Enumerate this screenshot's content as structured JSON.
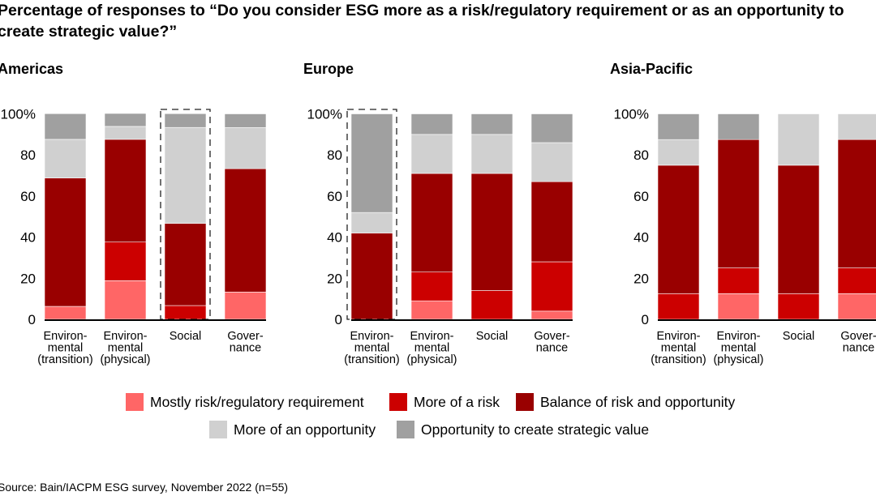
{
  "title": "Percentage of responses to “Do you consider ESG more as a risk/regulatory requirement or as an opportunity to create strategic value?”",
  "source": "Source: Bain/IACPM ESG survey, November 2022 (n=55)",
  "chart_data": [
    {
      "type": "bar",
      "stacked": true,
      "title": "Americas",
      "categories": [
        "Environ-|mental|(transition)",
        "Environ-|mental|(physical)",
        "Social",
        "Gover-|nance"
      ],
      "highlighted": [
        2
      ],
      "ylim": [
        0,
        100
      ],
      "yticks": [
        "0",
        "20",
        "40",
        "60",
        "80",
        "100%"
      ],
      "series": [
        {
          "name": "Mostly risk/regulatory requirement",
          "values": [
            6.3,
            18.8,
            0,
            13.3
          ]
        },
        {
          "name": "More of a risk",
          "values": [
            0,
            18.8,
            6.7,
            0
          ]
        },
        {
          "name": "Balance of risk and opportunity",
          "values": [
            62.5,
            50,
            40,
            60
          ]
        },
        {
          "name": "More of an opportunity",
          "values": [
            18.8,
            6.3,
            46.7,
            20
          ]
        },
        {
          "name": "Opportunity to create strategic value",
          "values": [
            12.5,
            6.3,
            6.7,
            6.7
          ]
        }
      ]
    },
    {
      "type": "bar",
      "stacked": true,
      "title": "Europe",
      "categories": [
        "Environ-|mental|(transition)",
        "Environ-|mental|(physical)",
        "Social",
        "Gover-|nance"
      ],
      "highlighted": [
        0
      ],
      "ylim": [
        0,
        100
      ],
      "yticks": [
        "0",
        "20",
        "40",
        "60",
        "80",
        "100%"
      ],
      "series": [
        {
          "name": "Mostly risk/regulatory requirement",
          "values": [
            0,
            9,
            0,
            4
          ]
        },
        {
          "name": "More of a risk",
          "values": [
            0,
            14,
            14,
            24
          ]
        },
        {
          "name": "Balance of risk and opportunity",
          "values": [
            42,
            48,
            57,
            39
          ]
        },
        {
          "name": "More of an opportunity",
          "values": [
            10,
            19,
            19,
            19
          ]
        },
        {
          "name": "Opportunity to create strategic value",
          "values": [
            48,
            10,
            10,
            14
          ]
        }
      ]
    },
    {
      "type": "bar",
      "stacked": true,
      "title": "Asia-Pacific",
      "categories": [
        "Environ-|mental|(transition)",
        "Environ-|mental|(physical)",
        "Social",
        "Gover-|nance"
      ],
      "highlighted": [],
      "ylim": [
        0,
        100
      ],
      "yticks": [
        "0",
        "20",
        "40",
        "60",
        "80",
        "100%"
      ],
      "series": [
        {
          "name": "Mostly risk/regulatory requirement",
          "values": [
            0,
            12.5,
            0,
            12.5
          ]
        },
        {
          "name": "More of a risk",
          "values": [
            12.5,
            12.5,
            12.5,
            12.5
          ]
        },
        {
          "name": "Balance of risk and opportunity",
          "values": [
            62.5,
            62.5,
            62.5,
            62.5
          ]
        },
        {
          "name": "More of an opportunity",
          "values": [
            12.5,
            0,
            25,
            12.5
          ]
        },
        {
          "name": "Opportunity to create strategic value",
          "values": [
            12.5,
            12.5,
            0,
            0
          ]
        }
      ]
    }
  ],
  "legend": [
    {
      "label": "Mostly risk/regulatory requirement",
      "color": "#ff6666"
    },
    {
      "label": "More of a risk",
      "color": "#cc0000"
    },
    {
      "label": "Balance of risk and opportunity",
      "color": "#990000"
    },
    {
      "label": "More of an opportunity",
      "color": "#d0d0d0"
    },
    {
      "label": "Opportunity to create strategic value",
      "color": "#a0a0a0"
    }
  ]
}
